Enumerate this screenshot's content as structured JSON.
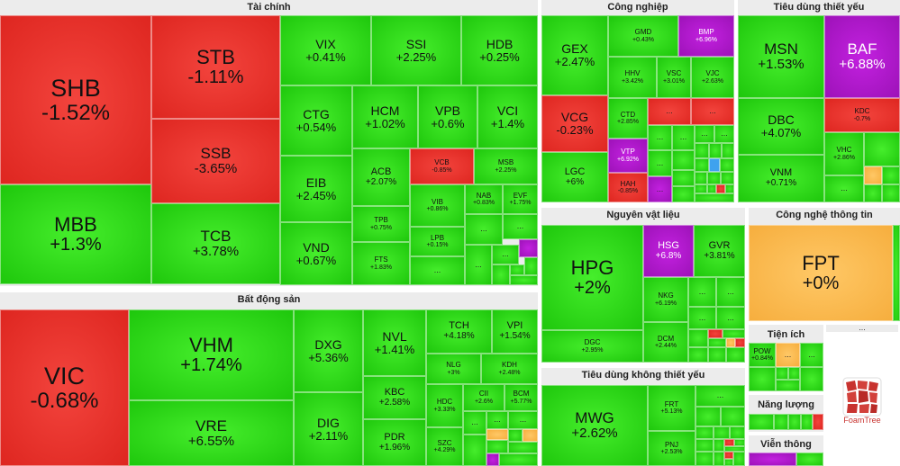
{
  "colors": {
    "up": "#2bd916",
    "down": "#e8302a",
    "ceiling": "#b21bcf",
    "reference": "#f6b84c",
    "floor": "#3fa2ee"
  },
  "sectors": {
    "tai_chinh": {
      "title": "Tài chính"
    },
    "bat_dong_san": {
      "title": "Bất động sản"
    },
    "cong_nghiep": {
      "title": "Công nghiệp"
    },
    "tieu_dung_thiet_yeu": {
      "title": "Tiêu dùng thiết yếu"
    },
    "nguyen_vat_lieu": {
      "title": "Nguyên vật liệu"
    },
    "cong_nghe_thong_tin": {
      "title": "Công nghệ thông tin"
    },
    "tieu_dung_khong_thiet_yeu": {
      "title": "Tiêu dùng không thiết yếu"
    },
    "tien_ich": {
      "title": "Tiện ích"
    },
    "nang_luong": {
      "title": "Năng lượng"
    },
    "vien_thong": {
      "title": "Viễn thông"
    }
  },
  "stocks": {
    "SHB": {
      "ticker": "SHB",
      "change": "-1.52%"
    },
    "MBB": {
      "ticker": "MBB",
      "change": "+1.3%"
    },
    "STB": {
      "ticker": "STB",
      "change": "-1.11%"
    },
    "SSB": {
      "ticker": "SSB",
      "change": "-3.65%"
    },
    "TCB": {
      "ticker": "TCB",
      "change": "+3.78%"
    },
    "VIX": {
      "ticker": "VIX",
      "change": "+0.41%"
    },
    "SSI": {
      "ticker": "SSI",
      "change": "+2.25%"
    },
    "HDB": {
      "ticker": "HDB",
      "change": "+0.25%"
    },
    "CTG": {
      "ticker": "CTG",
      "change": "+0.54%"
    },
    "HCM": {
      "ticker": "HCM",
      "change": "+1.02%"
    },
    "VPB": {
      "ticker": "VPB",
      "change": "+0.6%"
    },
    "VCI": {
      "ticker": "VCI",
      "change": "+1.4%"
    },
    "EIB": {
      "ticker": "EIB",
      "change": "+2.45%"
    },
    "ACB": {
      "ticker": "ACB",
      "change": "+2.07%"
    },
    "VCB": {
      "ticker": "VCB",
      "change": "-0.85%"
    },
    "MSB": {
      "ticker": "MSB",
      "change": "+2.25%"
    },
    "VIB": {
      "ticker": "VIB",
      "change": "+0.86%"
    },
    "NAB": {
      "ticker": "NAB",
      "change": "+0.83%"
    },
    "EVF": {
      "ticker": "EVF",
      "change": "+1.75%"
    },
    "TPB": {
      "ticker": "TPB",
      "change": "+0.75%"
    },
    "LPB": {
      "ticker": "LPB",
      "change": "+0.15%"
    },
    "VND": {
      "ticker": "VND",
      "change": "+0.67%"
    },
    "FTS": {
      "ticker": "FTS",
      "change": "+1.83%"
    },
    "VIC": {
      "ticker": "VIC",
      "change": "-0.68%"
    },
    "VHM": {
      "ticker": "VHM",
      "change": "+1.74%"
    },
    "VRE": {
      "ticker": "VRE",
      "change": "+6.55%"
    },
    "DXG": {
      "ticker": "DXG",
      "change": "+5.36%"
    },
    "DIG": {
      "ticker": "DIG",
      "change": "+2.11%"
    },
    "NVL": {
      "ticker": "NVL",
      "change": "+1.41%"
    },
    "KBC": {
      "ticker": "KBC",
      "change": "+2.58%"
    },
    "PDR": {
      "ticker": "PDR",
      "change": "+1.96%"
    },
    "TCH": {
      "ticker": "TCH",
      "change": "+4.18%"
    },
    "VPI": {
      "ticker": "VPI",
      "change": "+1.54%"
    },
    "NLG": {
      "ticker": "NLG",
      "change": "+3%"
    },
    "KDH": {
      "ticker": "KDH",
      "change": "+2.48%"
    },
    "HDC": {
      "ticker": "HDC",
      "change": "+3.33%"
    },
    "CII": {
      "ticker": "CII",
      "change": "+2.6%"
    },
    "BCM": {
      "ticker": "BCM",
      "change": "+5.77%"
    },
    "SZC": {
      "ticker": "SZC",
      "change": "+4.29%"
    },
    "GEX": {
      "ticker": "GEX",
      "change": "+2.47%"
    },
    "GMD": {
      "ticker": "GMD",
      "change": "+0.43%"
    },
    "BMP": {
      "ticker": "BMP",
      "change": "+6.96%"
    },
    "HHV": {
      "ticker": "HHV",
      "change": "+3.42%"
    },
    "VSC": {
      "ticker": "VSC",
      "change": "+3.01%"
    },
    "VJC": {
      "ticker": "VJC",
      "change": "+2.63%"
    },
    "VCG": {
      "ticker": "VCG",
      "change": "-0.23%"
    },
    "CTD": {
      "ticker": "CTD",
      "change": "+2.85%"
    },
    "VTP": {
      "ticker": "VTP",
      "change": "+6.92%"
    },
    "LGC": {
      "ticker": "LGC",
      "change": "+6%"
    },
    "HAH": {
      "ticker": "HAH",
      "change": "-0.85%"
    },
    "MSN": {
      "ticker": "MSN",
      "change": "+1.53%"
    },
    "BAF": {
      "ticker": "BAF",
      "change": "+6.88%"
    },
    "DBC": {
      "ticker": "DBC",
      "change": "+4.07%"
    },
    "KDC": {
      "ticker": "KDC",
      "change": "-0.7%"
    },
    "VHC": {
      "ticker": "VHC",
      "change": "+2.86%"
    },
    "VNM": {
      "ticker": "VNM",
      "change": "+0.71%"
    },
    "HPG": {
      "ticker": "HPG",
      "change": "+2%"
    },
    "HSG": {
      "ticker": "HSG",
      "change": "+6.8%"
    },
    "GVR": {
      "ticker": "GVR",
      "change": "+3.81%"
    },
    "NKG": {
      "ticker": "NKG",
      "change": "+6.19%"
    },
    "DGC": {
      "ticker": "DGC",
      "change": "+2.95%"
    },
    "DCM": {
      "ticker": "DCM",
      "change": "+2.44%"
    },
    "FPT": {
      "ticker": "FPT",
      "change": "+0%"
    },
    "MWG": {
      "ticker": "MWG",
      "change": "+2.62%"
    },
    "FRT": {
      "ticker": "FRT",
      "change": "+5.13%"
    },
    "PNJ": {
      "ticker": "PNJ",
      "change": "+2.53%"
    },
    "POW": {
      "ticker": "POW",
      "change": "+0.84%"
    }
  },
  "more_label": "...",
  "logo": {
    "text": "FoamTree"
  }
}
